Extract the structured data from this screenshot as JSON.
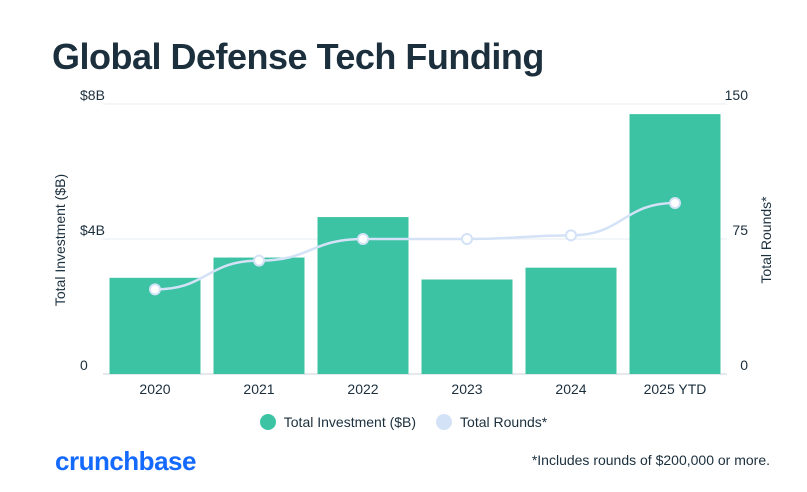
{
  "title": "Global Defense Tech Funding",
  "brand": "crunchbase",
  "footnote": "*Includes rounds of $200,000 or more.",
  "colors": {
    "bar": "#3cc3a3",
    "line": "#d3e2f7",
    "grid": "#e6edf2",
    "text": "#1b2f3d",
    "brand": "#146aff"
  },
  "chart_data": {
    "type": "bar",
    "categories": [
      "2020",
      "2021",
      "2022",
      "2023",
      "2024",
      "2025 YTD"
    ],
    "series": [
      {
        "name": "Total Investment ($B)",
        "axis": "left",
        "type": "bar",
        "values": [
          2.85,
          3.45,
          4.65,
          2.8,
          3.15,
          7.7
        ]
      },
      {
        "name": "Total Rounds*",
        "axis": "right",
        "type": "line",
        "values": [
          47,
          63,
          75,
          75,
          77,
          95
        ]
      }
    ],
    "y_left": {
      "label": "Total Investment ($B)",
      "ticks": [
        "0",
        "$4B",
        "$8B"
      ],
      "tick_values": [
        0,
        4,
        8
      ],
      "ylim": [
        0,
        8
      ]
    },
    "y_right": {
      "label": "Total Rounds*",
      "ticks": [
        "0",
        "75",
        "150"
      ],
      "tick_values": [
        0,
        75,
        150
      ],
      "ylim": [
        0,
        150
      ]
    },
    "legend": [
      "Total Investment ($B)",
      "Total Rounds*"
    ],
    "legend_position": "bottom"
  }
}
